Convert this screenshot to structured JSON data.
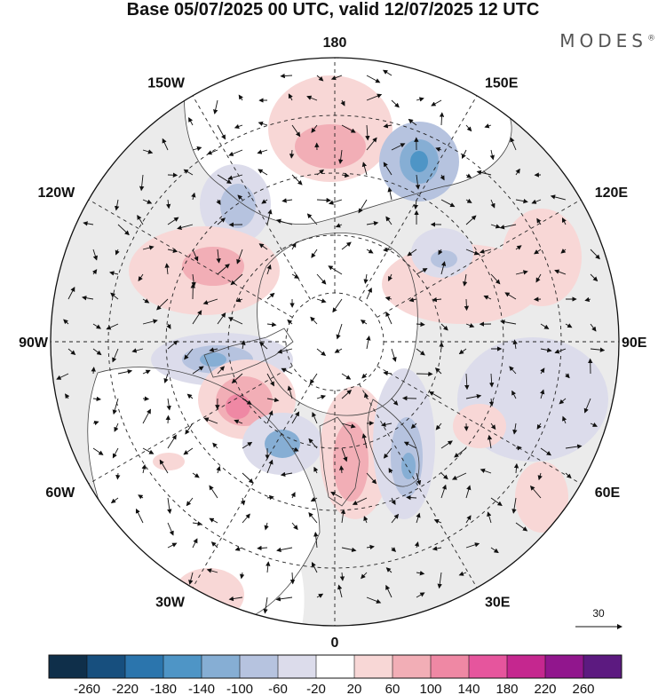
{
  "title": "Base 05/07/2025 00 UTC, valid 12/07/2025 12 UTC",
  "brand": "MODES",
  "brand_mark": "®",
  "map": {
    "projection": "north polar stereographic",
    "longitude_labels": [
      {
        "text": "180",
        "lon": 180
      },
      {
        "text": "150E",
        "lon": 150
      },
      {
        "text": "120E",
        "lon": 120
      },
      {
        "text": "90E",
        "lon": 90
      },
      {
        "text": "60E",
        "lon": 60
      },
      {
        "text": "30E",
        "lon": 30
      },
      {
        "text": "0",
        "lon": 0
      },
      {
        "text": "30W",
        "lon": -30
      },
      {
        "text": "60W",
        "lon": -60
      },
      {
        "text": "90W",
        "lon": -90
      },
      {
        "text": "120W",
        "lon": -120
      },
      {
        "text": "150W",
        "lon": -150
      }
    ],
    "reference_vector_label": "30",
    "colors": {
      "land": "#ebebeb",
      "ocean": "#ffffff",
      "coast": "#444444",
      "grid": "#222222"
    }
  },
  "colorbar": {
    "labels": [
      "-260",
      "-220",
      "-180",
      "-140",
      "-100",
      "-60",
      "-20",
      "20",
      "60",
      "100",
      "140",
      "180",
      "220",
      "260"
    ],
    "colors": [
      "#0f2f4a",
      "#174f7e",
      "#2b75ad",
      "#4e95c6",
      "#86aed4",
      "#b6c3df",
      "#dcdceb",
      "#ffffff",
      "#f8d7d6",
      "#f2aeb6",
      "#ef88a4",
      "#e6559d",
      "#c5278f",
      "#91168d",
      "#5c1a80"
    ]
  }
}
